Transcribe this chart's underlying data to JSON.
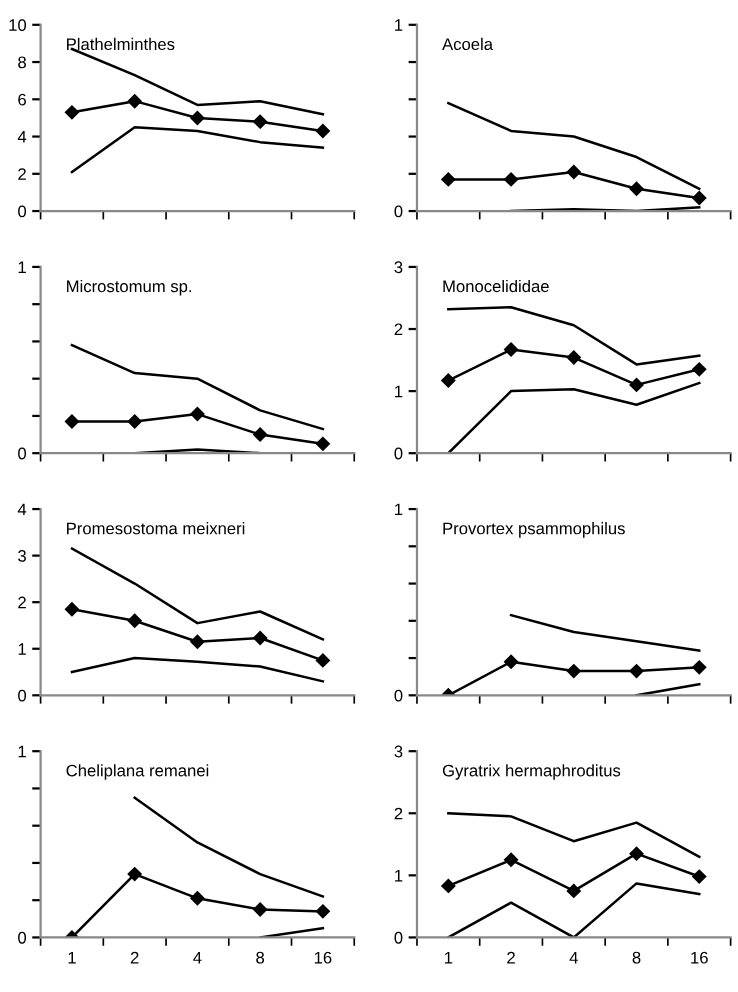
{
  "chart_data": [
    {
      "type": "line",
      "title": "Plathelminthes",
      "categories": [
        "1",
        "2",
        "4",
        "8",
        "16"
      ],
      "ylim": [
        0,
        10
      ],
      "yticks": [
        0,
        2,
        4,
        6,
        8,
        10
      ],
      "tick_labels": "y",
      "grid": false,
      "series": [
        {
          "color": "#000000",
          "marker": "none",
          "values": [
            8.7,
            7.3,
            5.7,
            5.9,
            5.2
          ]
        },
        {
          "color": "#000000",
          "marker": "diamond",
          "values": [
            5.3,
            5.9,
            5.0,
            4.8,
            4.3
          ]
        },
        {
          "color": "#000000",
          "marker": "none",
          "values": [
            2.1,
            4.5,
            4.3,
            3.7,
            3.4
          ]
        }
      ]
    },
    {
      "type": "line",
      "title": "Acoela",
      "categories": [
        "1",
        "2",
        "4",
        "8",
        "16"
      ],
      "ylim": [
        0,
        1
      ],
      "yticks": [
        0,
        {
          "value": 0.2,
          "label": null
        },
        {
          "value": 0.4,
          "label": null
        },
        {
          "value": 0.6,
          "label": null
        },
        {
          "value": 0.8,
          "label": null
        },
        1
      ],
      "tick_labels": "y",
      "grid": false,
      "series": [
        {
          "color": "#000000",
          "marker": "none",
          "values": [
            0.58,
            0.43,
            0.4,
            0.29,
            0.12
          ]
        },
        {
          "color": "#000000",
          "marker": "diamond",
          "values": [
            0.17,
            0.17,
            0.21,
            0.12,
            0.07
          ]
        },
        {
          "color": "#000000",
          "marker": "none",
          "values": [
            null,
            0,
            0.01,
            0,
            0.02
          ]
        }
      ]
    },
    {
      "type": "line",
      "title": "Microstomum sp.",
      "categories": [
        "1",
        "2",
        "4",
        "8",
        "16"
      ],
      "ylim": [
        0,
        1
      ],
      "yticks": [
        0,
        {
          "value": 0.2,
          "label": null
        },
        {
          "value": 0.4,
          "label": null
        },
        {
          "value": 0.6,
          "label": null
        },
        {
          "value": 0.8,
          "label": null
        },
        1
      ],
      "tick_labels": "y",
      "grid": false,
      "series": [
        {
          "color": "#000000",
          "marker": "none",
          "values": [
            0.58,
            0.43,
            0.4,
            0.23,
            0.13
          ]
        },
        {
          "color": "#000000",
          "marker": "diamond",
          "values": [
            0.17,
            0.17,
            0.21,
            0.1,
            0.05
          ]
        },
        {
          "color": "#000000",
          "marker": "none",
          "values": [
            null,
            0,
            0.02,
            0,
            null
          ]
        }
      ]
    },
    {
      "type": "line",
      "title": "Monocelididae",
      "categories": [
        "1",
        "2",
        "4",
        "8",
        "16"
      ],
      "ylim": [
        0,
        3
      ],
      "yticks": [
        0,
        1,
        2,
        3
      ],
      "tick_labels": "y",
      "grid": false,
      "series": [
        {
          "color": "#000000",
          "marker": "none",
          "values": [
            2.32,
            2.35,
            2.06,
            1.43,
            1.57
          ]
        },
        {
          "color": "#000000",
          "marker": "diamond",
          "values": [
            1.17,
            1.67,
            1.54,
            1.1,
            1.35
          ]
        },
        {
          "color": "#000000",
          "marker": "none",
          "values": [
            0,
            1.0,
            1.03,
            0.78,
            1.13
          ]
        }
      ]
    },
    {
      "type": "line",
      "title": "Promesostoma meixneri",
      "categories": [
        "1",
        "2",
        "4",
        "8",
        "16"
      ],
      "ylim": [
        0,
        4
      ],
      "yticks": [
        0,
        1,
        2,
        3,
        4
      ],
      "tick_labels": "y",
      "grid": false,
      "series": [
        {
          "color": "#000000",
          "marker": "none",
          "values": [
            3.15,
            2.4,
            1.55,
            1.8,
            1.2
          ]
        },
        {
          "color": "#000000",
          "marker": "diamond",
          "values": [
            1.85,
            1.6,
            1.15,
            1.23,
            0.75
          ]
        },
        {
          "color": "#000000",
          "marker": "none",
          "values": [
            0.5,
            0.8,
            0.72,
            0.62,
            0.3
          ]
        }
      ]
    },
    {
      "type": "line",
      "title": "Provortex psammophilus",
      "categories": [
        "1",
        "2",
        "4",
        "8",
        "16"
      ],
      "ylim": [
        0,
        1
      ],
      "yticks": [
        0,
        {
          "value": 0.2,
          "label": null
        },
        {
          "value": 0.4,
          "label": null
        },
        {
          "value": 0.6,
          "label": null
        },
        {
          "value": 0.8,
          "label": null
        },
        1
      ],
      "tick_labels": "y",
      "grid": false,
      "series": [
        {
          "color": "#000000",
          "marker": "none",
          "values": [
            null,
            0.43,
            0.34,
            0.29,
            0.24
          ]
        },
        {
          "color": "#000000",
          "marker": "diamond",
          "values": [
            0,
            0.18,
            0.13,
            0.13,
            0.15
          ]
        },
        {
          "color": "#000000",
          "marker": "none",
          "values": [
            null,
            null,
            null,
            0,
            0.06
          ]
        }
      ]
    },
    {
      "type": "line",
      "title": "Cheliplana remanei",
      "categories": [
        "1",
        "2",
        "4",
        "8",
        "16"
      ],
      "ylim": [
        0,
        1
      ],
      "yticks": [
        0,
        {
          "value": 0.2,
          "label": null
        },
        {
          "value": 0.4,
          "label": null
        },
        {
          "value": 0.6,
          "label": null
        },
        {
          "value": 0.8,
          "label": null
        },
        1
      ],
      "grid": false,
      "series": [
        {
          "color": "#000000",
          "marker": "none",
          "values": [
            null,
            0.75,
            0.51,
            0.34,
            0.22
          ]
        },
        {
          "color": "#000000",
          "marker": "diamond",
          "values": [
            0,
            0.34,
            0.21,
            0.15,
            0.14
          ]
        },
        {
          "color": "#000000",
          "marker": "none",
          "values": [
            null,
            null,
            null,
            0,
            0.05
          ]
        }
      ]
    },
    {
      "type": "line",
      "title": "Gyratrix hermaphroditus",
      "categories": [
        "1",
        "2",
        "4",
        "8",
        "16"
      ],
      "ylim": [
        0,
        3
      ],
      "yticks": [
        0,
        1,
        2,
        3
      ],
      "grid": false,
      "series": [
        {
          "color": "#000000",
          "marker": "none",
          "values": [
            2.0,
            1.95,
            1.55,
            1.85,
            1.3
          ]
        },
        {
          "color": "#000000",
          "marker": "diamond",
          "values": [
            0.83,
            1.25,
            0.75,
            1.35,
            0.98
          ]
        },
        {
          "color": "#000000",
          "marker": "none",
          "values": [
            0,
            0.56,
            0,
            0.87,
            0.7
          ]
        }
      ]
    }
  ]
}
